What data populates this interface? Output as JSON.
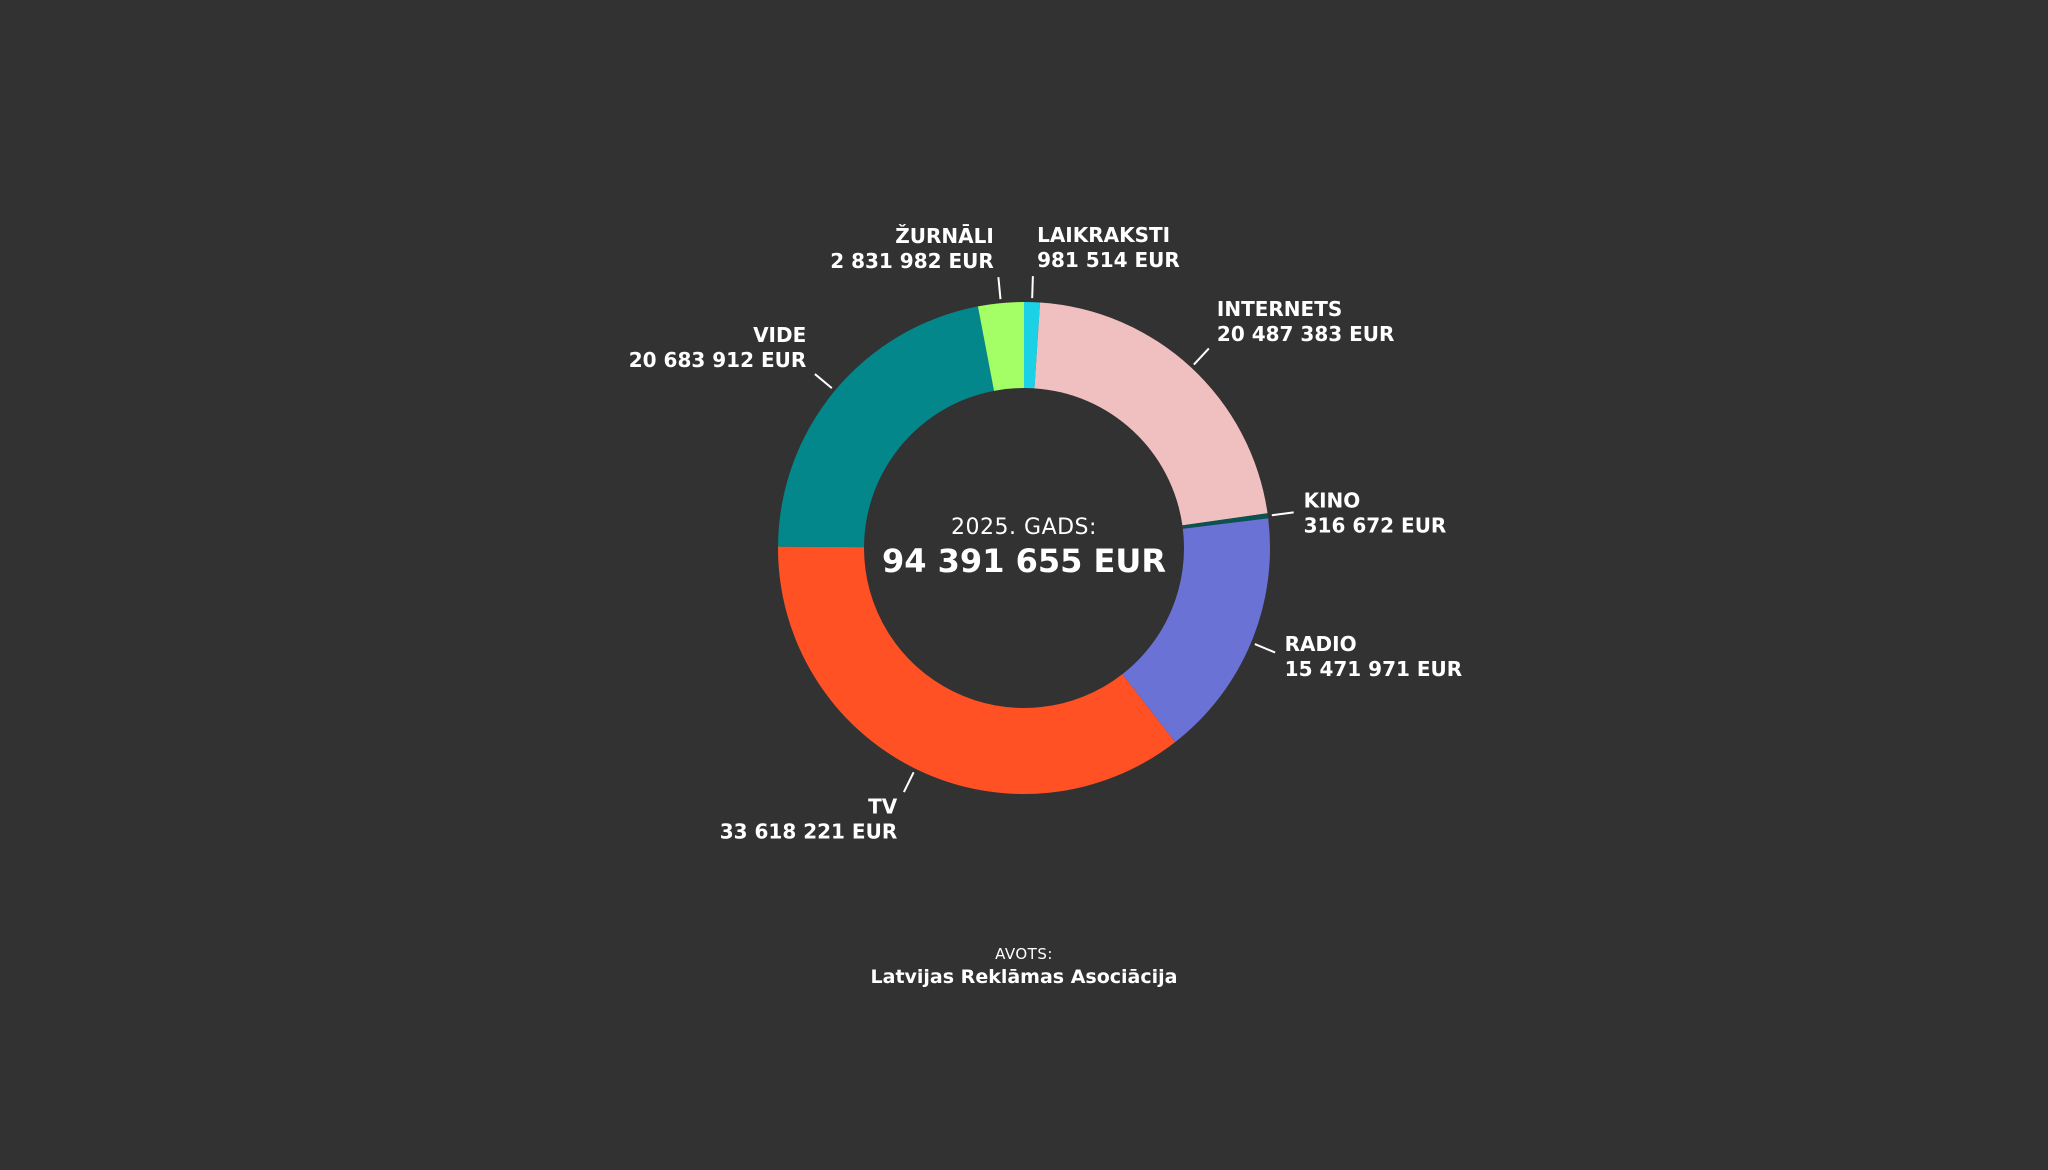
{
  "chart_data": {
    "type": "pie",
    "variant": "donut",
    "center": {
      "caption": "2025. GADS:",
      "total": "94 391 655 EUR"
    },
    "slices": [
      {
        "name": "LAIKRAKSTI",
        "value": 981514,
        "value_label": "981 514 EUR",
        "color": "#1ad1e6"
      },
      {
        "name": "INTERNETS",
        "value": 20487383,
        "value_label": "20 487 383 EUR",
        "color": "#f0bfbf"
      },
      {
        "name": "KINO",
        "value": 316672,
        "value_label": "316 672 EUR",
        "color": "#0b5350"
      },
      {
        "name": "RADIO",
        "value": 15471971,
        "value_label": "15 471 971 EUR",
        "color": "#6a72d6"
      },
      {
        "name": "TV",
        "value": 33618221,
        "value_label": "33 618 221 EUR",
        "color": "#ff5124"
      },
      {
        "name": "VIDE",
        "value": 20683912,
        "value_label": "20 683 912 EUR",
        "color": "#03878a"
      },
      {
        "name": "ŽURNĀLI",
        "value": 2831982,
        "value_label": "2 831 982 EUR",
        "color": "#a4ff66"
      }
    ]
  },
  "source": {
    "caption": "AVOTS:",
    "name": "Latvijas Reklāmas Asociācija"
  }
}
